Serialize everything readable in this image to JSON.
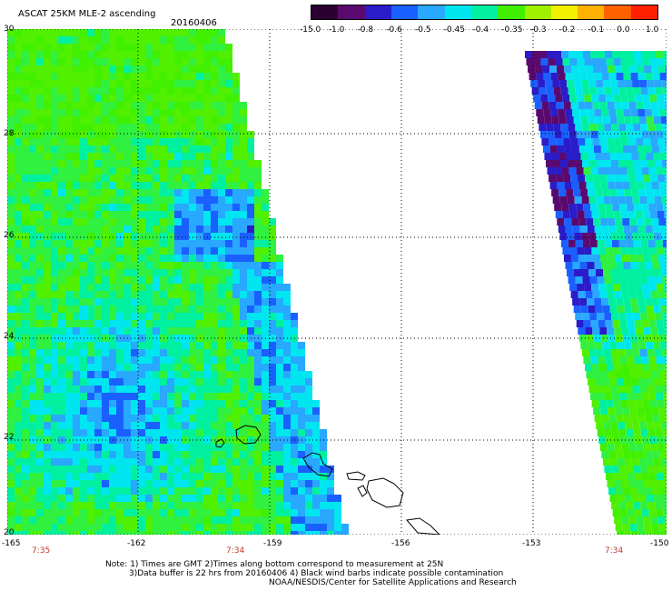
{
  "title": "ASCAT 25KM MLE-2 ascending",
  "date": "20160406",
  "colorbar": {
    "labels": [
      "-15.0",
      "-1.0",
      "-0.8",
      "-0.6",
      "-0.5",
      "-0.45",
      "-0.4",
      "-0.35",
      "-0.3",
      "-0.2",
      "-0.1",
      "0.0",
      "1.0"
    ],
    "colors": [
      "#2a0030",
      "#5a0a6e",
      "#2a1cc8",
      "#1a60ff",
      "#28a8ff",
      "#00e6f0",
      "#00f0a0",
      "#40f000",
      "#a0f000",
      "#f0f000",
      "#ffb000",
      "#ff6000",
      "#ff2000"
    ]
  },
  "lat_labels": [
    "30",
    "28",
    "26",
    "24",
    "22",
    "20"
  ],
  "lon_labels": [
    "-165",
    "-162",
    "-159",
    "-156",
    "-153",
    "-150"
  ],
  "time_labels": [
    "7:35",
    "7:34",
    "7:34"
  ],
  "notes": {
    "line1": "Note: 1) Times are GMT 2)Times along bottom correspond to measurement at 25N",
    "line2": "3)Data buffer is 22 hrs from 20160406 4) Black wind barbs indicate possible contamination",
    "line3": "NOAA/NESDIS/Center for Satellite Applications and Research"
  }
}
